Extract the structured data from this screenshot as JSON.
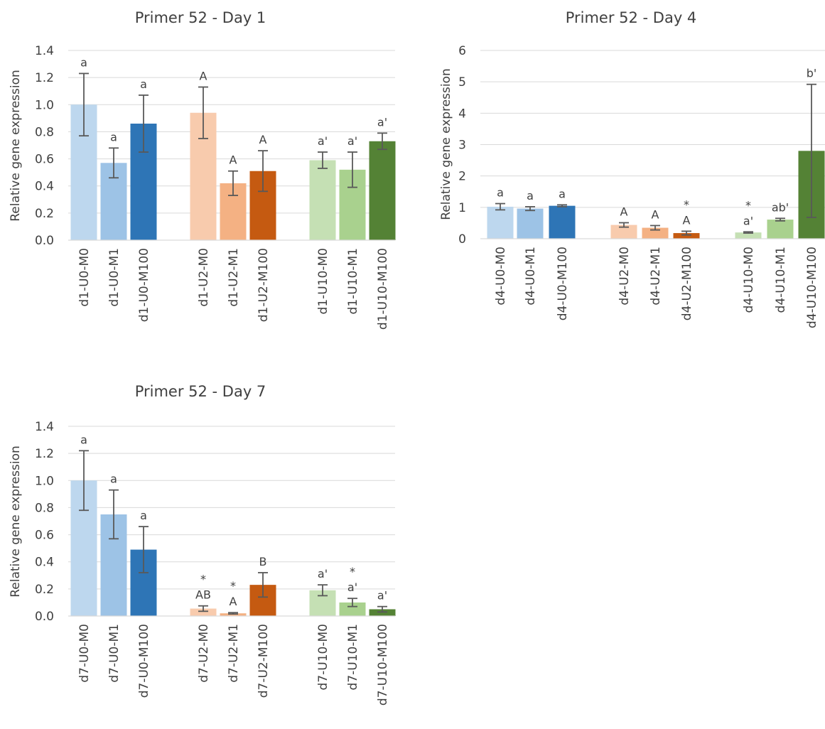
{
  "chart_data": [
    {
      "type": "bar",
      "title": "Primer 52 - Day 1",
      "ylabel": "Relative gene expression",
      "ylim": [
        0,
        1.4
      ],
      "yticks": [
        "0.0",
        "0.2",
        "0.4",
        "0.6",
        "0.8",
        "1.0",
        "1.2",
        "1.4"
      ],
      "grid": true,
      "categories": [
        "d1-U0-M0",
        "d1-U0-M1",
        "d1-U0-M100",
        "d1-U2-M0",
        "d1-U2-M1",
        "d1-U2-M100",
        "d1-U10-M0",
        "d1-U10-M1",
        "d1-U10-M100"
      ],
      "values": [
        1.0,
        0.57,
        0.86,
        0.94,
        0.42,
        0.51,
        0.59,
        0.52,
        0.73
      ],
      "errors": [
        0.23,
        0.11,
        0.21,
        0.19,
        0.09,
        0.15,
        0.06,
        0.13,
        0.06
      ],
      "labels": [
        [
          "a"
        ],
        [
          "a"
        ],
        [
          "a"
        ],
        [
          "A"
        ],
        [
          "A"
        ],
        [
          "A"
        ],
        [
          "a'"
        ],
        [
          "a'"
        ],
        [
          "a'"
        ]
      ],
      "colors": [
        "#bdd7ee",
        "#9dc3e6",
        "#2e75b6",
        "#f8cbad",
        "#f4b183",
        "#c55a11",
        "#c5e0b4",
        "#a9d18e",
        "#548235"
      ]
    },
    {
      "type": "bar",
      "title": "Primer 52 - Day 4",
      "ylabel": "Relative gene expression",
      "ylim": [
        0,
        6
      ],
      "yticks": [
        "0",
        "1",
        "2",
        "3",
        "4",
        "5",
        "6"
      ],
      "grid": true,
      "categories": [
        "d4-U0-M0",
        "d4-U0-M1",
        "d4-U0-M100",
        "d4-U2-M0",
        "d4-U2-M1",
        "d4-U2-M100",
        "d4-U10-M0",
        "d4-U10-M1",
        "d4-U10-M100"
      ],
      "values": [
        1.02,
        0.96,
        1.05,
        0.44,
        0.35,
        0.18,
        0.2,
        0.61,
        2.8
      ],
      "errors": [
        0.1,
        0.06,
        0.03,
        0.07,
        0.07,
        0.06,
        0.02,
        0.04,
        2.12
      ],
      "labels": [
        [
          "a"
        ],
        [
          "a"
        ],
        [
          "a"
        ],
        [
          "A"
        ],
        [
          "A"
        ],
        [
          "*",
          "A"
        ],
        [
          "*",
          "a'"
        ],
        [
          "ab'"
        ],
        [
          "b'"
        ]
      ],
      "colors": [
        "#bdd7ee",
        "#9dc3e6",
        "#2e75b6",
        "#f8cbad",
        "#f4b183",
        "#c55a11",
        "#c5e0b4",
        "#a9d18e",
        "#548235"
      ]
    },
    {
      "type": "bar",
      "title": "Primer 52 - Day 7",
      "ylabel": "Relative gene expression",
      "ylim": [
        0,
        1.4
      ],
      "yticks": [
        "0.0",
        "0.2",
        "0.4",
        "0.6",
        "0.8",
        "1.0",
        "1.2",
        "1.4"
      ],
      "grid": true,
      "categories": [
        "d7-U0-M0",
        "d7-U0-M1",
        "d7-U0-M100",
        "d7-U2-M0",
        "d7-U2-M1",
        "d7-U2-M100",
        "d7-U10-M0",
        "d7-U10-M1",
        "d7-U10-M100"
      ],
      "values": [
        1.0,
        0.75,
        0.49,
        0.055,
        0.02,
        0.23,
        0.19,
        0.1,
        0.05
      ],
      "errors": [
        0.22,
        0.18,
        0.17,
        0.02,
        0.005,
        0.09,
        0.04,
        0.03,
        0.02
      ],
      "labels": [
        [
          "a"
        ],
        [
          "a"
        ],
        [
          "a"
        ],
        [
          "*",
          "AB"
        ],
        [
          "*",
          "A"
        ],
        [
          "B"
        ],
        [
          "a'"
        ],
        [
          "*",
          "a'"
        ],
        [
          "a'"
        ]
      ],
      "colors": [
        "#bdd7ee",
        "#9dc3e6",
        "#2e75b6",
        "#f8cbad",
        "#f4b183",
        "#c55a11",
        "#c5e0b4",
        "#a9d18e",
        "#548235"
      ]
    }
  ]
}
